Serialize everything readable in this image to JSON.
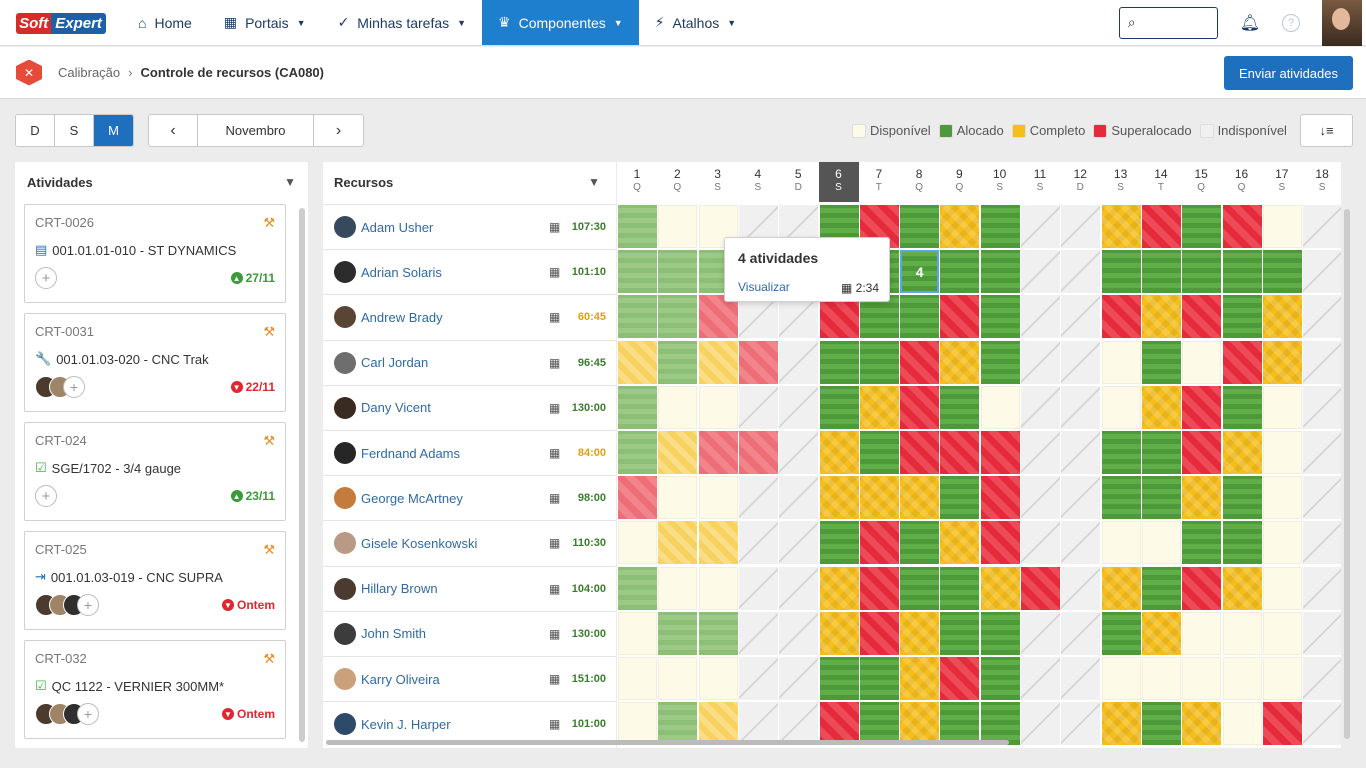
{
  "logo": {
    "left": "Soft",
    "right": "Expert"
  },
  "nav": [
    {
      "label": "Home",
      "icon": "home-icon",
      "glyph": "⌂",
      "caret": false,
      "active": false
    },
    {
      "label": "Portais",
      "icon": "grid-icon",
      "glyph": "▦",
      "caret": true,
      "active": false
    },
    {
      "label": "Minhas tarefas",
      "icon": "check-icon",
      "glyph": "✓",
      "caret": true,
      "active": false
    },
    {
      "label": "Componentes",
      "icon": "trophy-icon",
      "glyph": "♛",
      "caret": true,
      "active": true
    },
    {
      "label": "Atalhos",
      "icon": "bolt-icon",
      "glyph": "⚡",
      "caret": true,
      "active": false
    }
  ],
  "search": {
    "placeholder": ""
  },
  "breadcrumb": {
    "parent": "Calibração",
    "current": "Controle de recursos (CA080)"
  },
  "send_button": "Enviar atividades",
  "view_modes": [
    {
      "label": "D",
      "on": false
    },
    {
      "label": "S",
      "on": false
    },
    {
      "label": "M",
      "on": true
    }
  ],
  "month": "Novembro",
  "legend": [
    {
      "label": "Disponível",
      "color": "#fdfbe8"
    },
    {
      "label": "Alocado",
      "color": "#4e9a3a"
    },
    {
      "label": "Completo",
      "color": "#f6be1a"
    },
    {
      "label": "Superalocado",
      "color": "#e52b3b"
    },
    {
      "label": "Indisponível",
      "color": "#f0f0f0"
    }
  ],
  "activities_title": "Atividades",
  "activities": [
    {
      "code": "CRT-0026",
      "title": "001.01.01-010 - ST DYNAMICS",
      "type_icon": "clipboard-icon",
      "glyph": "▤",
      "icon_color": "blue",
      "avatars": 0,
      "date": "27/11",
      "date_status": "green"
    },
    {
      "code": "CRT-0031",
      "title": "001.01.03-020 - CNC Trak",
      "type_icon": "wrench-icon",
      "glyph": "🔧",
      "icon_color": "blue",
      "avatars": 2,
      "date": "22/11",
      "date_status": "red"
    },
    {
      "code": "CRT-024",
      "title": "SGE/1702 - 3/4 gauge",
      "type_icon": "checkbox-icon",
      "glyph": "☑",
      "icon_color": "green",
      "avatars": 0,
      "date": "23/11",
      "date_status": "green"
    },
    {
      "code": "CRT-025",
      "title": "001.01.03-019 - CNC SUPRA",
      "type_icon": "transfer-icon",
      "glyph": "⇥",
      "icon_color": "blue",
      "avatars": 3,
      "date": "Ontem",
      "date_status": "red"
    },
    {
      "code": "CRT-032",
      "title": "QC 1122 - VERNIER  300MM*",
      "type_icon": "checkbox-icon",
      "glyph": "☑",
      "icon_color": "green",
      "avatars": 3,
      "date": "Ontem",
      "date_status": "red"
    }
  ],
  "resources_title": "Recursos",
  "days": [
    {
      "n": "1",
      "l": "Q"
    },
    {
      "n": "2",
      "l": "Q"
    },
    {
      "n": "3",
      "l": "S"
    },
    {
      "n": "4",
      "l": "S"
    },
    {
      "n": "5",
      "l": "D"
    },
    {
      "n": "6",
      "l": "S"
    },
    {
      "n": "7",
      "l": "T"
    },
    {
      "n": "8",
      "l": "Q"
    },
    {
      "n": "9",
      "l": "Q"
    },
    {
      "n": "10",
      "l": "S"
    },
    {
      "n": "11",
      "l": "S"
    },
    {
      "n": "12",
      "l": "D"
    },
    {
      "n": "13",
      "l": "S"
    },
    {
      "n": "14",
      "l": "T"
    },
    {
      "n": "15",
      "l": "Q"
    },
    {
      "n": "16",
      "l": "Q"
    },
    {
      "n": "17",
      "l": "S"
    },
    {
      "n": "18",
      "l": "S"
    }
  ],
  "today_index": 5,
  "resources": [
    {
      "name": "Adam Usher",
      "hours": "107:30",
      "warn": false,
      "cells": [
        "GL",
        "F",
        "F",
        "N",
        "N",
        "G",
        "R",
        "G",
        "Y",
        "G",
        "N",
        "N",
        "Y",
        "R",
        "G",
        "R",
        "F",
        "N"
      ]
    },
    {
      "name": "Adrian Solaris",
      "hours": "101:10",
      "warn": false,
      "cells": [
        "GL",
        "GL",
        "GL",
        "N",
        "N",
        "G",
        "G",
        "G",
        "G",
        "G",
        "N",
        "N",
        "G",
        "G",
        "G",
        "G",
        "G",
        "N"
      ]
    },
    {
      "name": "Andrew Brady",
      "hours": "60:45",
      "warn": true,
      "cells": [
        "GL",
        "GL",
        "RL",
        "N",
        "N",
        "R",
        "G",
        "G",
        "R",
        "G",
        "N",
        "N",
        "R",
        "Y",
        "R",
        "G",
        "Y",
        "N"
      ]
    },
    {
      "name": "Carl Jordan",
      "hours": "96:45",
      "warn": false,
      "cells": [
        "YL",
        "GL",
        "YL",
        "RL",
        "N",
        "G",
        "G",
        "R",
        "Y",
        "G",
        "N",
        "N",
        "F",
        "G",
        "F",
        "R",
        "Y",
        "N"
      ]
    },
    {
      "name": "Dany Vicent",
      "hours": "130:00",
      "warn": false,
      "cells": [
        "GL",
        "F",
        "F",
        "N",
        "N",
        "G",
        "Y",
        "R",
        "G",
        "F",
        "N",
        "N",
        "F",
        "Y",
        "R",
        "G",
        "F",
        "N"
      ]
    },
    {
      "name": "Ferdnand Adams",
      "hours": "84:00",
      "warn": true,
      "cells": [
        "GL",
        "YL",
        "RL",
        "RL",
        "N",
        "Y",
        "G",
        "R",
        "R",
        "R",
        "N",
        "N",
        "G",
        "G",
        "R",
        "Y",
        "F",
        "N"
      ]
    },
    {
      "name": "George McArtney",
      "hours": "98:00",
      "warn": false,
      "cells": [
        "RL",
        "F",
        "F",
        "N",
        "N",
        "Y",
        "Y",
        "Y",
        "G",
        "R",
        "N",
        "N",
        "G",
        "G",
        "Y",
        "G",
        "F",
        "N"
      ]
    },
    {
      "name": "Gisele Kosenkowski",
      "hours": "110:30",
      "warn": false,
      "cells": [
        "F",
        "YL",
        "YL",
        "N",
        "N",
        "G",
        "R",
        "G",
        "Y",
        "R",
        "N",
        "N",
        "F",
        "F",
        "G",
        "G",
        "F",
        "N"
      ]
    },
    {
      "name": "Hillary Brown",
      "hours": "104:00",
      "warn": false,
      "cells": [
        "GL",
        "F",
        "F",
        "N",
        "N",
        "Y",
        "R",
        "G",
        "G",
        "Y",
        "R",
        "N",
        "Y",
        "G",
        "R",
        "Y",
        "F",
        "N"
      ]
    },
    {
      "name": "John Smith",
      "hours": "130:00",
      "warn": false,
      "cells": [
        "F",
        "GL",
        "GL",
        "N",
        "N",
        "Y",
        "R",
        "Y",
        "G",
        "G",
        "N",
        "N",
        "G",
        "Y",
        "F",
        "F",
        "F",
        "N"
      ]
    },
    {
      "name": "Karry Oliveira",
      "hours": "151:00",
      "warn": false,
      "cells": [
        "F",
        "F",
        "F",
        "N",
        "N",
        "G",
        "G",
        "Y",
        "R",
        "G",
        "N",
        "N",
        "F",
        "F",
        "F",
        "F",
        "F",
        "N"
      ]
    },
    {
      "name": "Kevin J. Harper",
      "hours": "101:00",
      "warn": false,
      "cells": [
        "F",
        "GL",
        "YL",
        "N",
        "N",
        "R",
        "G",
        "Y",
        "G",
        "G",
        "N",
        "N",
        "Y",
        "G",
        "Y",
        "F",
        "R",
        "N"
      ]
    }
  ],
  "selected_cell": {
    "row": 1,
    "col": 7,
    "value": "4"
  },
  "tooltip": {
    "title": "4 atividades",
    "link": "Visualizar",
    "time": "2:34"
  }
}
